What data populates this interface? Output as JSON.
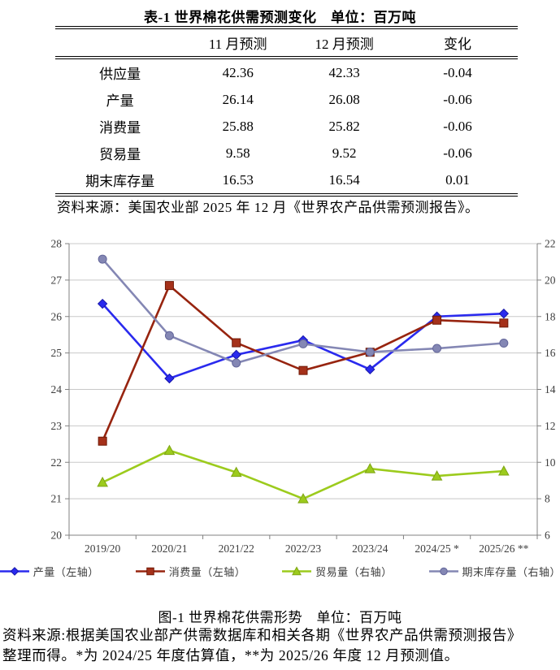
{
  "table_section": {
    "title": "表-1 世界棉花供需预测变化　单位：百万吨",
    "columns": [
      "",
      "11 月预测",
      "12 月预测",
      "变化"
    ],
    "rows": [
      {
        "label": "供应量",
        "nov": "42.36",
        "dec": "42.33",
        "change": "-0.04"
      },
      {
        "label": "产量",
        "nov": "26.14",
        "dec": "26.08",
        "change": "-0.06"
      },
      {
        "label": "消费量",
        "nov": "25.88",
        "dec": "25.82",
        "change": "-0.06"
      },
      {
        "label": "贸易量",
        "nov": "9.58",
        "dec": "9.52",
        "change": "-0.06"
      },
      {
        "label": "期末库存量",
        "nov": "16.53",
        "dec": "16.54",
        "change": "0.01"
      }
    ],
    "source": "资料来源：美国农业部 2025 年 12 月《世界农产品供需预测报告》。"
  },
  "chart_data": {
    "type": "line",
    "title": "图-1 世界棉花供需形势　单位：百万吨",
    "categories": [
      "2019/20",
      "2020/21",
      "2021/22",
      "2022/23",
      "2023/24",
      "2024/25 *",
      "2025/26 **"
    ],
    "series": [
      {
        "name": "产量（左轴）",
        "axis": "left",
        "marker": "diamond",
        "color": "#2a2aee",
        "fill": "#2a2aee",
        "edge": "#1717a8",
        "values": [
          26.35,
          24.3,
          24.95,
          25.35,
          24.55,
          26.0,
          26.08
        ]
      },
      {
        "name": "消费量（左轴）",
        "axis": "left",
        "marker": "square",
        "color": "#97240f",
        "fill": "#a5311a",
        "edge": "#701a08",
        "values": [
          22.58,
          26.85,
          25.28,
          24.52,
          25.02,
          25.9,
          25.82
        ]
      },
      {
        "name": "贸易量（右轴）",
        "axis": "right",
        "marker": "triangle",
        "color": "#9ccb1d",
        "fill": "#9ccb1d",
        "edge": "#7ea512",
        "values": [
          8.9,
          10.65,
          9.45,
          8.0,
          9.65,
          9.25,
          9.52
        ]
      },
      {
        "name": "期末库存量（右轴）",
        "axis": "right",
        "marker": "circle",
        "color": "#8487b4",
        "fill": "#8487b4",
        "edge": "#63669a",
        "values": [
          21.15,
          16.95,
          15.45,
          16.5,
          16.05,
          16.25,
          16.54
        ]
      }
    ],
    "left_axis": {
      "min": 20,
      "max": 28,
      "step": 1
    },
    "right_axis": {
      "min": 6,
      "max": 22,
      "step": 2
    },
    "grid": true,
    "legend_position": "bottom",
    "colors": {
      "gridline": "#c8c8c8",
      "axis_line": "#808080",
      "axis_text": "#3d3d3d"
    }
  },
  "figure": {
    "caption": "图-1 世界棉花供需形势　单位：百万吨",
    "source_line1": "资料来源:根据美国农业部产供需数据库和相关各期《世界农产品供需预测报告》",
    "source_line2": "整理而得。*为 2024/25 年度估算值，**为 2025/26 年度 12 月预测值。"
  }
}
